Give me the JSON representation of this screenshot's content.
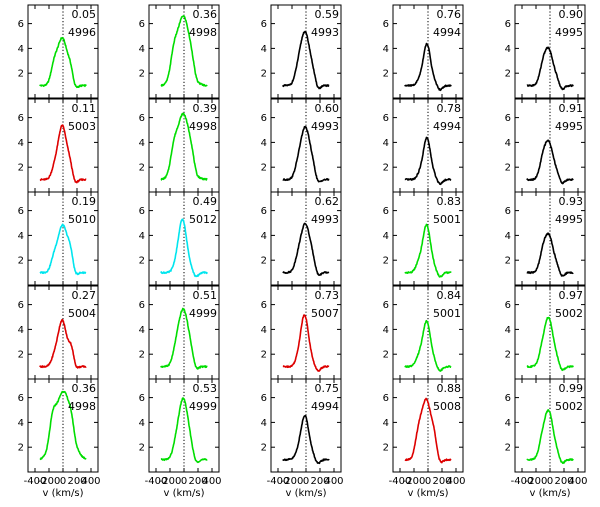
{
  "chart_data": {
    "type": "line",
    "layout": "grid",
    "rows": 5,
    "cols": 5,
    "xlabel": "v (km/s)",
    "ylabel": "",
    "xlim": [
      -500,
      500
    ],
    "ylim": [
      0,
      7.5
    ],
    "x_ticks": [
      -400,
      -200,
      0,
      200,
      400
    ],
    "x_tick_labels": [
      "-400",
      "-200",
      "0",
      "200",
      "400"
    ],
    "y_ticks": [
      2,
      4,
      6
    ],
    "y_tick_labels": [
      "2",
      "4",
      "6"
    ],
    "reference_line_x": 0,
    "panels": [
      {
        "phase": "0.05",
        "hjd": "4996",
        "color": "#00dd00",
        "col": 0,
        "row": 0,
        "peak": 4.8,
        "center": -10,
        "width": 70,
        "shoulder_pos": -130,
        "shoulder_amp": 1.3,
        "tail_pos": 110,
        "tail_amp": 1.0
      },
      {
        "phase": "0.11",
        "hjd": "5003",
        "color": "#dd0000",
        "col": 0,
        "row": 1,
        "peak": 5.3,
        "center": -10,
        "width": 60,
        "shoulder_pos": -120,
        "shoulder_amp": 0.8,
        "tail_pos": 100,
        "tail_amp": 1.0
      },
      {
        "phase": "0.19",
        "hjd": "5010",
        "color": "#00e5ee",
        "col": 0,
        "row": 2,
        "peak": 4.8,
        "center": -5,
        "width": 70,
        "shoulder_pos": -130,
        "shoulder_amp": 0.9,
        "tail_pos": 110,
        "tail_amp": 1.2
      },
      {
        "phase": "0.27",
        "hjd": "5004",
        "color": "#dd0000",
        "col": 0,
        "row": 3,
        "peak": 4.7,
        "center": -10,
        "width": 60,
        "shoulder_pos": -120,
        "shoulder_amp": 0.7,
        "tail_pos": 120,
        "tail_amp": 1.5
      },
      {
        "phase": "0.36",
        "hjd": "4998",
        "color": "#00dd00",
        "col": 0,
        "row": 4,
        "peak": 6.5,
        "center": 5,
        "width": 110,
        "shoulder_pos": -150,
        "shoulder_amp": 1.8,
        "tail_pos": 130,
        "tail_amp": 0.8
      },
      {
        "phase": "0.36",
        "hjd": "4998",
        "color": "#00dd00",
        "col": 1,
        "row": 0,
        "peak": 6.6,
        "center": -10,
        "width": 95,
        "shoulder_pos": -150,
        "shoulder_amp": 1.4,
        "tail_pos": 120,
        "tail_amp": 0.5
      },
      {
        "phase": "0.39",
        "hjd": "4998",
        "color": "#00dd00",
        "col": 1,
        "row": 1,
        "peak": 6.3,
        "center": -10,
        "width": 95,
        "shoulder_pos": -150,
        "shoulder_amp": 1.3,
        "tail_pos": 120,
        "tail_amp": 0.5
      },
      {
        "phase": "0.49",
        "hjd": "5012",
        "color": "#00e5ee",
        "col": 1,
        "row": 2,
        "peak": 5.2,
        "center": -20,
        "width": 55,
        "shoulder_pos": -110,
        "shoulder_amp": 0.6,
        "tail_pos": 80,
        "tail_amp": 0.4
      },
      {
        "phase": "0.51",
        "hjd": "4999",
        "color": "#00dd00",
        "col": 1,
        "row": 3,
        "peak": 5.6,
        "center": -10,
        "width": 75,
        "shoulder_pos": -120,
        "shoulder_amp": 0.6,
        "tail_pos": 100,
        "tail_amp": 0.4
      },
      {
        "phase": "0.53",
        "hjd": "4999",
        "color": "#00dd00",
        "col": 1,
        "row": 4,
        "peak": 5.9,
        "center": -10,
        "width": 70,
        "shoulder_pos": -120,
        "shoulder_amp": 0.6,
        "tail_pos": 100,
        "tail_amp": 0.4
      },
      {
        "phase": "0.59",
        "hjd": "4993",
        "color": "#000000",
        "col": 2,
        "row": 0,
        "peak": 5.3,
        "center": -15,
        "width": 70,
        "shoulder_pos": -120,
        "shoulder_amp": 0.6,
        "tail_pos": 100,
        "tail_amp": 0.5
      },
      {
        "phase": "0.60",
        "hjd": "4993",
        "color": "#000000",
        "col": 2,
        "row": 1,
        "peak": 5.2,
        "center": -10,
        "width": 70,
        "shoulder_pos": -120,
        "shoulder_amp": 0.6,
        "tail_pos": 100,
        "tail_amp": 0.5
      },
      {
        "phase": "0.62",
        "hjd": "4993",
        "color": "#000000",
        "col": 2,
        "row": 2,
        "peak": 4.9,
        "center": -10,
        "width": 70,
        "shoulder_pos": -120,
        "shoulder_amp": 0.6,
        "tail_pos": 100,
        "tail_amp": 0.5
      },
      {
        "phase": "0.73",
        "hjd": "5007",
        "color": "#dd0000",
        "col": 2,
        "row": 3,
        "peak": 5.1,
        "center": -20,
        "width": 55,
        "shoulder_pos": -110,
        "shoulder_amp": 0.5,
        "tail_pos": 80,
        "tail_amp": 0.3
      },
      {
        "phase": "0.75",
        "hjd": "4994",
        "color": "#000000",
        "col": 2,
        "row": 4,
        "peak": 4.5,
        "center": -15,
        "width": 55,
        "shoulder_pos": -110,
        "shoulder_amp": 0.5,
        "tail_pos": 90,
        "tail_amp": 0.3
      },
      {
        "phase": "0.76",
        "hjd": "4994",
        "color": "#000000",
        "col": 3,
        "row": 0,
        "peak": 4.3,
        "center": -15,
        "width": 50,
        "shoulder_pos": -110,
        "shoulder_amp": 0.5,
        "tail_pos": 80,
        "tail_amp": 0.3
      },
      {
        "phase": "0.78",
        "hjd": "4994",
        "color": "#000000",
        "col": 3,
        "row": 1,
        "peak": 4.3,
        "center": -15,
        "width": 50,
        "shoulder_pos": -110,
        "shoulder_amp": 0.5,
        "tail_pos": 80,
        "tail_amp": 0.3
      },
      {
        "phase": "0.83",
        "hjd": "5001",
        "color": "#00dd00",
        "col": 3,
        "row": 2,
        "peak": 4.8,
        "center": -20,
        "width": 55,
        "shoulder_pos": -130,
        "shoulder_amp": 0.7,
        "tail_pos": 80,
        "tail_amp": 0.3
      },
      {
        "phase": "0.84",
        "hjd": "5001",
        "color": "#00dd00",
        "col": 3,
        "row": 3,
        "peak": 4.6,
        "center": -20,
        "width": 55,
        "shoulder_pos": -130,
        "shoulder_amp": 0.7,
        "tail_pos": 80,
        "tail_amp": 0.3
      },
      {
        "phase": "0.88",
        "hjd": "5008",
        "color": "#dd0000",
        "col": 3,
        "row": 4,
        "peak": 5.8,
        "center": -25,
        "width": 70,
        "shoulder_pos": -140,
        "shoulder_amp": 1.5,
        "tail_pos": 90,
        "tail_amp": 1.2
      },
      {
        "phase": "0.90",
        "hjd": "4995",
        "color": "#000000",
        "col": 4,
        "row": 0,
        "peak": 3.9,
        "center": -20,
        "width": 65,
        "shoulder_pos": -110,
        "shoulder_amp": 0.9,
        "tail_pos": 100,
        "tail_amp": 0.3
      },
      {
        "phase": "0.91",
        "hjd": "4995",
        "color": "#000000",
        "col": 4,
        "row": 1,
        "peak": 4.0,
        "center": -20,
        "width": 65,
        "shoulder_pos": -110,
        "shoulder_amp": 0.9,
        "tail_pos": 100,
        "tail_amp": 0.3
      },
      {
        "phase": "0.93",
        "hjd": "4995",
        "color": "#000000",
        "col": 4,
        "row": 2,
        "peak": 4.0,
        "center": -20,
        "width": 65,
        "shoulder_pos": -110,
        "shoulder_amp": 0.9,
        "tail_pos": 100,
        "tail_amp": 0.3
      },
      {
        "phase": "0.97",
        "hjd": "5002",
        "color": "#00dd00",
        "col": 4,
        "row": 3,
        "peak": 4.9,
        "center": -20,
        "width": 65,
        "shoulder_pos": -120,
        "shoulder_amp": 0.7,
        "tail_pos": 100,
        "tail_amp": 0.3
      },
      {
        "phase": "0.99",
        "hjd": "5002",
        "color": "#00dd00",
        "col": 4,
        "row": 4,
        "peak": 4.9,
        "center": -20,
        "width": 65,
        "shoulder_pos": -120,
        "shoulder_amp": 0.9,
        "tail_pos": 100,
        "tail_amp": 0.3
      }
    ]
  }
}
